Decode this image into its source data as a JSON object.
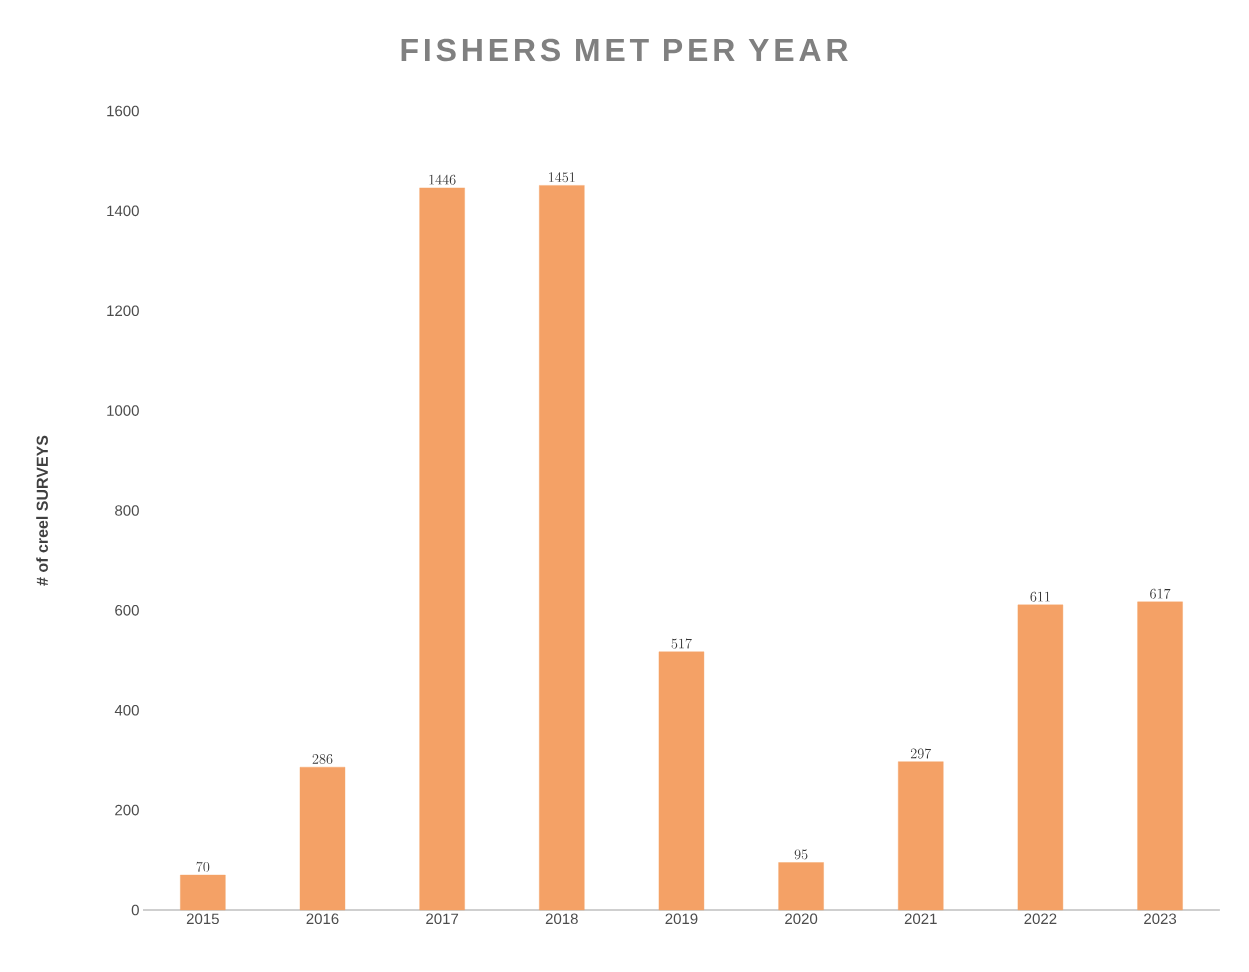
{
  "chart_data": {
    "type": "bar",
    "title": "FISHERS MET PER YEAR",
    "ylabel": "# of creel SURVEYS",
    "categories": [
      "2015",
      "2016",
      "2017",
      "2018",
      "2019",
      "2020",
      "2021",
      "2022",
      "2023"
    ],
    "values": [
      70,
      286,
      1446,
      1451,
      517,
      95,
      297,
      611,
      617
    ],
    "color": "#f4a166",
    "ylim": [
      0,
      1600
    ],
    "yticks": [
      0,
      200,
      400,
      600,
      800,
      1000,
      1200,
      1400,
      1600
    ],
    "grid": false,
    "data_labels": true
  }
}
